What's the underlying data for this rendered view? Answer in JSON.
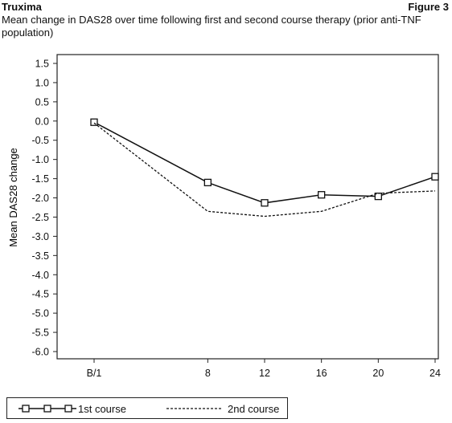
{
  "header": {
    "brand": "Truxima",
    "figure": "Figure 3",
    "title": "Mean change in DAS28 over time following first and second course therapy (prior anti-TNF population)"
  },
  "chart_data": {
    "type": "line",
    "title": "Mean change in DAS28 over time following first and second course therapy (prior anti-TNF population)",
    "xlabel": "",
    "ylabel": "Mean DAS28 change",
    "categories": [
      "B/1",
      "8",
      "12",
      "16",
      "20",
      "24"
    ],
    "ylim": [
      -6.2,
      1.6
    ],
    "yticks": [
      1.5,
      1.0,
      0.5,
      0.0,
      -0.5,
      -1.0,
      -1.5,
      -2.0,
      -2.5,
      -3.0,
      -3.5,
      -4.0,
      -4.5,
      -5.0,
      -5.5,
      -6.0
    ],
    "ytick_labels": [
      "1.5",
      "1.0",
      "0.5",
      "0.0",
      "-0.5",
      "-1.0",
      "-1.5",
      "-2.0",
      "-2.5",
      "-3.0",
      "-3.5",
      "-4.0",
      "-4.5",
      "-5.0",
      "-5.5",
      "-6.0"
    ],
    "grid": false,
    "legend_position": "bottom",
    "series": [
      {
        "name": "1st course",
        "style": "solid-square-markers",
        "color": "#111111",
        "x": [
          0,
          8,
          12,
          16,
          20,
          24
        ],
        "values": [
          -0.03,
          -1.6,
          -2.13,
          -1.92,
          -1.96,
          -1.45
        ]
      },
      {
        "name": "2nd course",
        "style": "dashed",
        "color": "#111111",
        "x": [
          0,
          8,
          12,
          16,
          20,
          24
        ],
        "values": [
          -0.05,
          -2.35,
          -2.48,
          -2.35,
          -1.88,
          -1.82
        ]
      }
    ]
  }
}
